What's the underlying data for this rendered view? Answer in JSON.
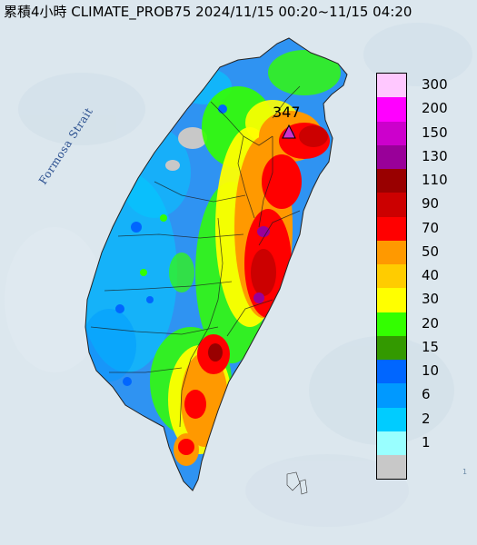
{
  "title": "累積4小時 CLIMATE_PROB75 2024/11/15 00:20~11/15 04:20",
  "strait_label": "Formosa Strait",
  "max_marker": {
    "value": "347"
  },
  "corner_text": "1",
  "legend": {
    "items": [
      {
        "label": "300",
        "color": "#ffc8ff"
      },
      {
        "label": "200",
        "color": "#ff00ff"
      },
      {
        "label": "150",
        "color": "#cc00cc"
      },
      {
        "label": "130",
        "color": "#990099"
      },
      {
        "label": "110",
        "color": "#990000"
      },
      {
        "label": "90",
        "color": "#cc0000"
      },
      {
        "label": "70",
        "color": "#ff0000"
      },
      {
        "label": "50",
        "color": "#ff9900"
      },
      {
        "label": "40",
        "color": "#ffcc00"
      },
      {
        "label": "30",
        "color": "#ffff00"
      },
      {
        "label": "20",
        "color": "#33ff00"
      },
      {
        "label": "15",
        "color": "#339900"
      },
      {
        "label": "10",
        "color": "#0066ff"
      },
      {
        "label": "6",
        "color": "#0099ff"
      },
      {
        "label": "2",
        "color": "#00ccff"
      },
      {
        "label": "1",
        "color": "#99ffff"
      },
      {
        "label": "",
        "color": "#c8c8c8"
      }
    ]
  },
  "colors": {
    "sea": "#dce7ee",
    "land_base": "#2f93f2",
    "marker": "#cc33cc"
  }
}
